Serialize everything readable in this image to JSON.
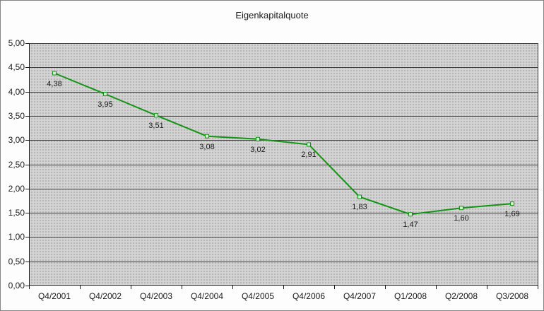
{
  "chart_data": {
    "type": "line",
    "title": "Eigenkapitalquote",
    "categories": [
      "Q4/2001",
      "Q4/2002",
      "Q4/2003",
      "Q4/2004",
      "Q4/2005",
      "Q4/2006",
      "Q4/2007",
      "Q1/2008",
      "Q2/2008",
      "Q3/2008"
    ],
    "values": [
      4.38,
      3.95,
      3.51,
      3.08,
      3.02,
      2.91,
      1.83,
      1.47,
      1.6,
      1.69
    ],
    "point_labels": [
      "4,38",
      "3,95",
      "3,51",
      "3,08",
      "3,02",
      "2,91",
      "1,83",
      "1,47",
      "1,60",
      "1,69"
    ],
    "y_tick_labels": [
      "5,00",
      "4,50",
      "4,00",
      "3,50",
      "3,00",
      "2,50",
      "2,00",
      "1,50",
      "1,00",
      "0,50",
      "0,00"
    ],
    "ylim": [
      0,
      5
    ],
    "y_step": 0.5,
    "xlabel": "",
    "ylabel": "",
    "legend": "none",
    "grid": "horizontal-major",
    "colors": {
      "series_line": "#149414",
      "marker_fill": "#ccf2cc",
      "marker_border": "#149414",
      "plot_background": "#b7b7b7",
      "plot_pattern": "#d6d6d6",
      "gridline": "#404040",
      "axis": "#1a1a1a",
      "chart_background": "#fdfdfd",
      "outer_border": "#848484",
      "text": "#1a1a1a"
    }
  }
}
